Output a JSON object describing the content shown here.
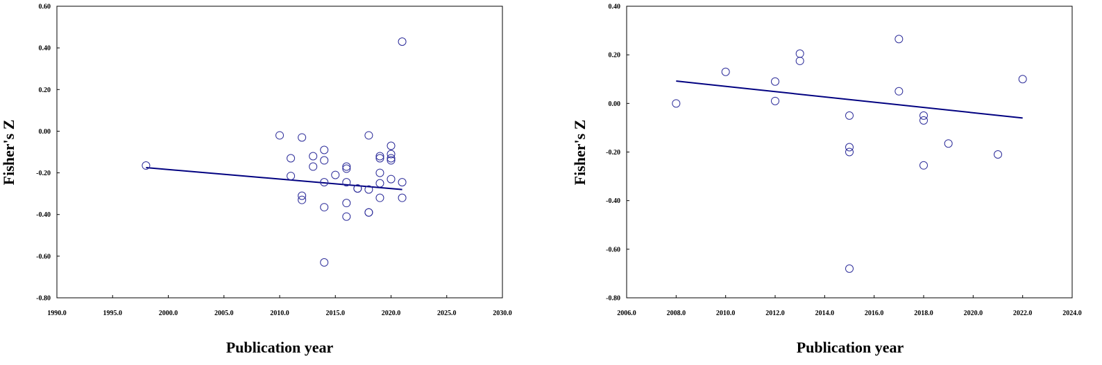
{
  "chart_data": [
    {
      "type": "scatter",
      "title": "",
      "xlabel": "Publication year",
      "ylabel": "Fisher's Z",
      "xlim": [
        1990,
        2030
      ],
      "ylim": [
        -0.8,
        0.6
      ],
      "x_ticks": [
        1990,
        1995,
        2000,
        2005,
        2010,
        2015,
        2020,
        2025,
        2030
      ],
      "x_tick_labels": [
        "1990.0",
        "1995.0",
        "2000.0",
        "2005.0",
        "2010.0",
        "2015.0",
        "2020.0",
        "2025.0",
        "2030.0"
      ],
      "y_ticks": [
        -0.8,
        -0.6,
        -0.4,
        -0.2,
        0.0,
        0.2,
        0.4,
        0.6
      ],
      "y_tick_labels": [
        "-0.80",
        "-0.60",
        "-0.40",
        "-0.20",
        "0.00",
        "0.20",
        "0.40",
        "0.60"
      ],
      "grid": false,
      "marker_color": "#2B2B99",
      "line_color": "#000080",
      "points": [
        {
          "x": 1998,
          "y": -0.165
        },
        {
          "x": 2010,
          "y": -0.02
        },
        {
          "x": 2011,
          "y": -0.13
        },
        {
          "x": 2011,
          "y": -0.215
        },
        {
          "x": 2012,
          "y": -0.03
        },
        {
          "x": 2012,
          "y": -0.31
        },
        {
          "x": 2012,
          "y": -0.33
        },
        {
          "x": 2013,
          "y": -0.12
        },
        {
          "x": 2013,
          "y": -0.17
        },
        {
          "x": 2014,
          "y": -0.09
        },
        {
          "x": 2014,
          "y": -0.14
        },
        {
          "x": 2014,
          "y": -0.245
        },
        {
          "x": 2014,
          "y": -0.365
        },
        {
          "x": 2014,
          "y": -0.63
        },
        {
          "x": 2015,
          "y": -0.21
        },
        {
          "x": 2016,
          "y": -0.17
        },
        {
          "x": 2016,
          "y": -0.18
        },
        {
          "x": 2016,
          "y": -0.245
        },
        {
          "x": 2016,
          "y": -0.345
        },
        {
          "x": 2016,
          "y": -0.41
        },
        {
          "x": 2017,
          "y": -0.275
        },
        {
          "x": 2017,
          "y": -0.275
        },
        {
          "x": 2018,
          "y": -0.02
        },
        {
          "x": 2018,
          "y": -0.28
        },
        {
          "x": 2018,
          "y": -0.39
        },
        {
          "x": 2018,
          "y": -0.39
        },
        {
          "x": 2019,
          "y": -0.12
        },
        {
          "x": 2019,
          "y": -0.13
        },
        {
          "x": 2019,
          "y": -0.2
        },
        {
          "x": 2019,
          "y": -0.25
        },
        {
          "x": 2019,
          "y": -0.32
        },
        {
          "x": 2020,
          "y": -0.07
        },
        {
          "x": 2020,
          "y": -0.11
        },
        {
          "x": 2020,
          "y": -0.13
        },
        {
          "x": 2020,
          "y": -0.14
        },
        {
          "x": 2020,
          "y": -0.23
        },
        {
          "x": 2021,
          "y": 0.43
        },
        {
          "x": 2021,
          "y": -0.245
        },
        {
          "x": 2021,
          "y": -0.32
        }
      ],
      "regression_line": [
        {
          "x": 1998,
          "y": -0.175
        },
        {
          "x": 2021,
          "y": -0.28
        }
      ]
    },
    {
      "type": "scatter",
      "title": "",
      "xlabel": "Publication year",
      "ylabel": "Fisher's Z",
      "xlim": [
        2006,
        2024
      ],
      "ylim": [
        -0.8,
        0.4
      ],
      "x_ticks": [
        2006,
        2008,
        2010,
        2012,
        2014,
        2016,
        2018,
        2020,
        2022,
        2024
      ],
      "x_tick_labels": [
        "2006.0",
        "2008.0",
        "2010.0",
        "2012.0",
        "2014.0",
        "2016.0",
        "2018.0",
        "2020.0",
        "2022.0",
        "2024.0"
      ],
      "y_ticks": [
        -0.8,
        -0.6,
        -0.4,
        -0.2,
        0.0,
        0.2,
        0.4
      ],
      "y_tick_labels": [
        "-0.80",
        "-0.60",
        "-0.40",
        "-0.20",
        "0.00",
        "0.20",
        "0.40"
      ],
      "grid": false,
      "marker_color": "#2B2B99",
      "line_color": "#000080",
      "points": [
        {
          "x": 2008,
          "y": 0.0
        },
        {
          "x": 2010,
          "y": 0.13
        },
        {
          "x": 2012,
          "y": 0.09
        },
        {
          "x": 2012,
          "y": 0.01
        },
        {
          "x": 2013,
          "y": 0.205
        },
        {
          "x": 2013,
          "y": 0.175
        },
        {
          "x": 2015,
          "y": -0.05
        },
        {
          "x": 2015,
          "y": -0.18
        },
        {
          "x": 2015,
          "y": -0.2
        },
        {
          "x": 2015,
          "y": -0.68
        },
        {
          "x": 2017,
          "y": 0.265
        },
        {
          "x": 2017,
          "y": 0.05
        },
        {
          "x": 2018,
          "y": -0.05
        },
        {
          "x": 2018,
          "y": -0.07
        },
        {
          "x": 2018,
          "y": -0.255
        },
        {
          "x": 2019,
          "y": -0.165
        },
        {
          "x": 2021,
          "y": -0.21
        },
        {
          "x": 2022,
          "y": 0.1
        }
      ],
      "regression_line": [
        {
          "x": 2008,
          "y": 0.092
        },
        {
          "x": 2022,
          "y": -0.06
        }
      ]
    }
  ]
}
